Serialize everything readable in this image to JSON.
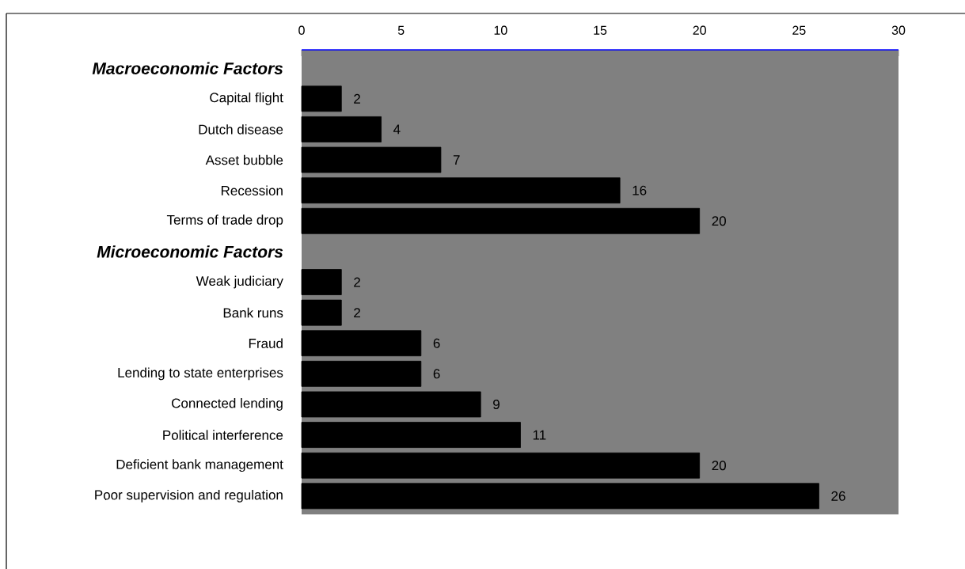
{
  "chart_data": {
    "type": "bar",
    "orientation": "horizontal",
    "categories": [
      "Macroeconomic  Factors",
      "Capital flight",
      "Dutch disease",
      "Asset bubble",
      "Recession",
      "Terms of trade drop",
      "Microeconomic  Factors",
      "Weak judiciary",
      "Bank runs",
      "Fraud",
      "Lending to state enterprises",
      "Connected lending",
      "Political interference",
      "Deficient bank management",
      "Poor supervision and regulation"
    ],
    "values": [
      null,
      2,
      4,
      7,
      16,
      20,
      null,
      2,
      2,
      6,
      6,
      9,
      11,
      20,
      26
    ],
    "color": "#000000",
    "xlim": [
      0,
      30
    ],
    "xticks": [
      0,
      5,
      10,
      15,
      20,
      25,
      30
    ],
    "data_labels": true
  }
}
